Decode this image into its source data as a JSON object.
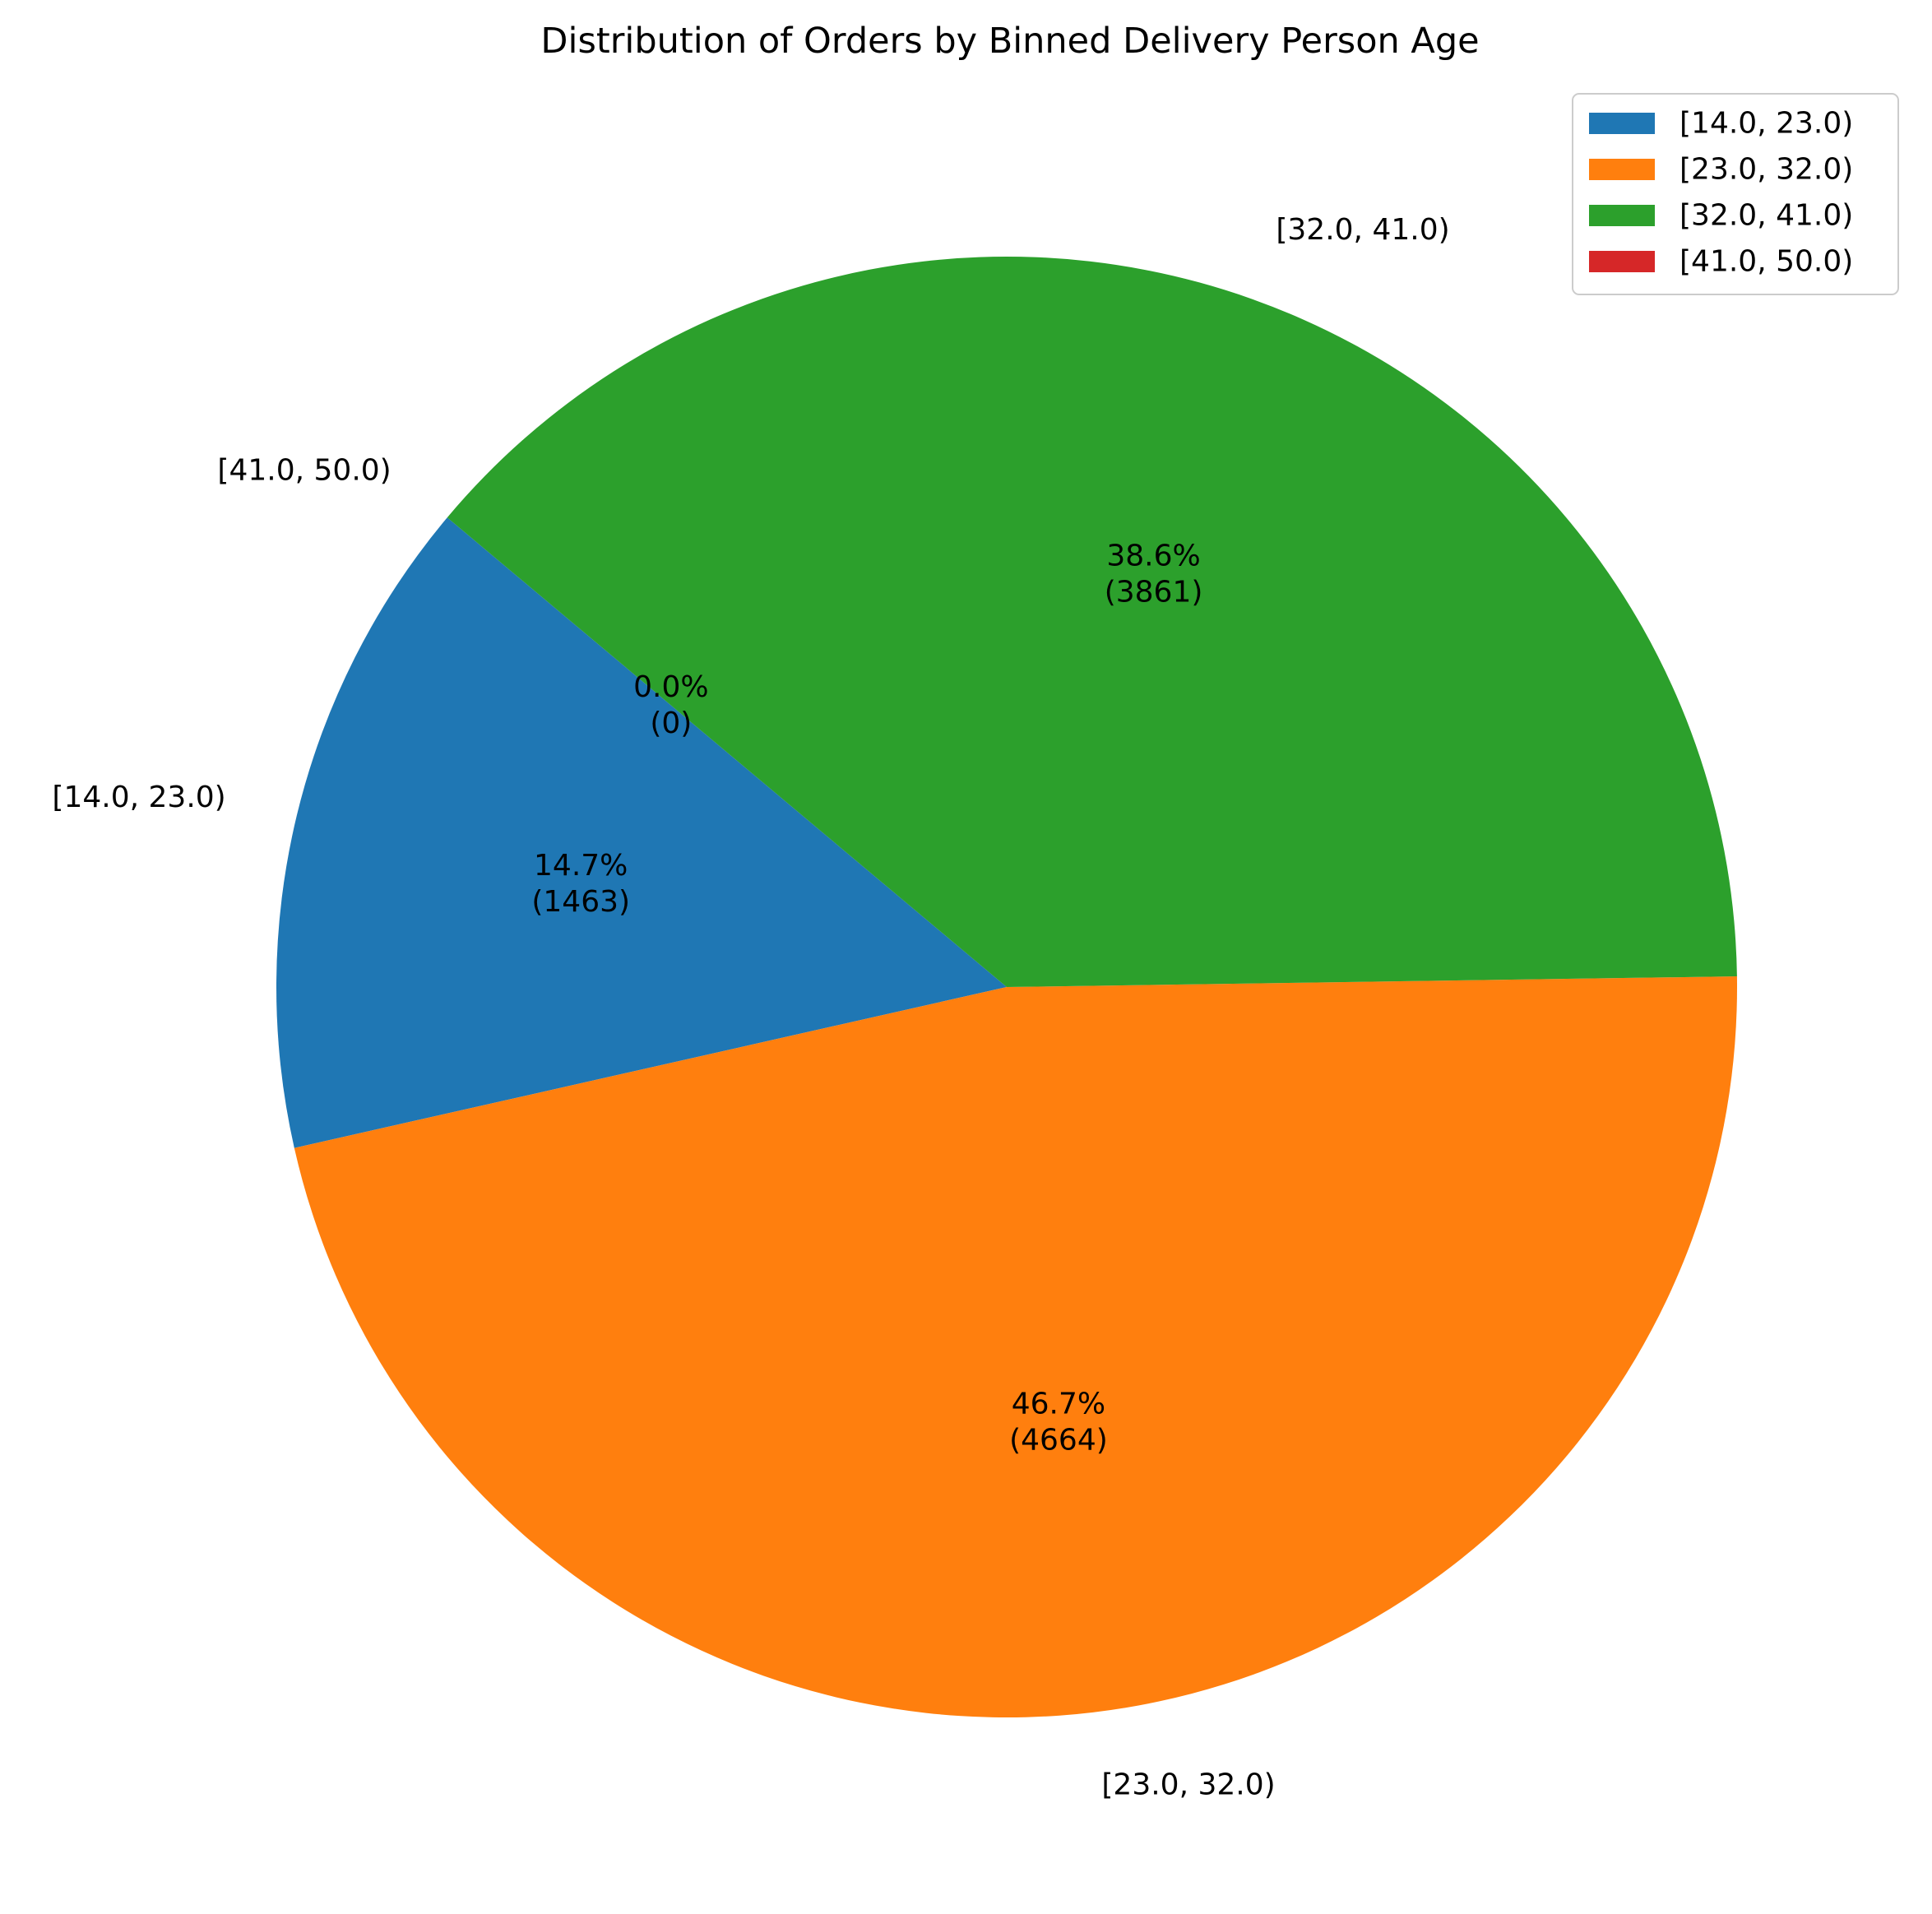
{
  "chart_data": {
    "type": "pie",
    "title": "Distribution of Orders by Binned Delivery Person Age",
    "categories": [
      "[14.0, 23.0)",
      "[23.0, 32.0)",
      "[32.0, 41.0)",
      "[41.0, 50.0)"
    ],
    "values": [
      1463,
      4664,
      3861,
      0
    ],
    "percent_labels": [
      "14.7%",
      "46.7%",
      "38.6%",
      "0.0%"
    ],
    "count_labels": [
      "(1463)",
      "(4664)",
      "(3861)",
      "(0)"
    ],
    "colors": [
      "#1f77b4",
      "#ff7f0e",
      "#2ca02c",
      "#d62728"
    ],
    "start_angle_deg": 140,
    "direction": "counterclockwise",
    "legend": {
      "position": "top-right",
      "entries": [
        "[14.0, 23.0)",
        "[23.0, 32.0)",
        "[32.0, 41.0)",
        "[41.0, 50.0)"
      ]
    }
  }
}
